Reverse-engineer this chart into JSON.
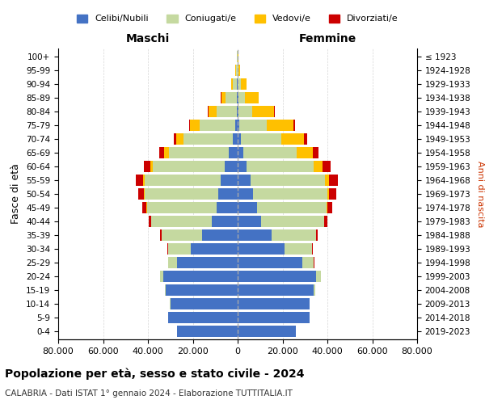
{
  "age_groups": [
    "0-4",
    "5-9",
    "10-14",
    "15-19",
    "20-24",
    "25-29",
    "30-34",
    "35-39",
    "40-44",
    "45-49",
    "50-54",
    "55-59",
    "60-64",
    "65-69",
    "70-74",
    "75-79",
    "80-84",
    "85-89",
    "90-94",
    "95-99",
    "100+"
  ],
  "birth_years": [
    "2019-2023",
    "2014-2018",
    "2009-2013",
    "2004-2008",
    "1999-2003",
    "1994-1998",
    "1989-1993",
    "1984-1988",
    "1979-1983",
    "1974-1978",
    "1969-1973",
    "1964-1968",
    "1959-1963",
    "1954-1958",
    "1949-1953",
    "1944-1948",
    "1939-1943",
    "1934-1938",
    "1929-1933",
    "1924-1928",
    "≤ 1923"
  ],
  "colors": {
    "celibi": "#4472c4",
    "coniugati": "#c5d9a0",
    "vedovi": "#ffc000",
    "divorziati": "#cc0000"
  },
  "male": {
    "celibi": [
      27000,
      31000,
      30000,
      32000,
      33000,
      27000,
      21000,
      16000,
      11500,
      9500,
      8500,
      7500,
      5800,
      3800,
      2300,
      1100,
      500,
      350,
      200,
      100,
      50
    ],
    "coniugati": [
      20,
      50,
      100,
      500,
      1500,
      4000,
      10000,
      18000,
      27000,
      31000,
      33000,
      34000,
      32000,
      27000,
      22000,
      16000,
      9000,
      5000,
      2000,
      600,
      200
    ],
    "vedovi": [
      0,
      1,
      1,
      2,
      5,
      10,
      20,
      40,
      80,
      150,
      300,
      600,
      1200,
      2000,
      3000,
      4000,
      3500,
      2000,
      800,
      300,
      100
    ],
    "divorziati": [
      1,
      2,
      5,
      10,
      30,
      80,
      200,
      500,
      900,
      1800,
      2500,
      3200,
      2800,
      2000,
      1200,
      600,
      200,
      100,
      60,
      30,
      10
    ]
  },
  "female": {
    "nubili": [
      26000,
      32000,
      32000,
      34000,
      35000,
      29000,
      21000,
      15000,
      10500,
      8500,
      7000,
      5800,
      3800,
      2400,
      1400,
      800,
      350,
      250,
      150,
      80,
      30
    ],
    "coniugate": [
      20,
      50,
      150,
      600,
      2000,
      5000,
      12000,
      20000,
      28000,
      31000,
      33000,
      33000,
      30000,
      24000,
      18000,
      12000,
      6000,
      3000,
      1200,
      400,
      150
    ],
    "vedove": [
      0,
      1,
      1,
      3,
      8,
      20,
      50,
      100,
      200,
      400,
      800,
      2000,
      4000,
      7000,
      10000,
      12000,
      10000,
      6000,
      2500,
      700,
      200
    ],
    "divorziate": [
      1,
      2,
      5,
      15,
      40,
      100,
      300,
      700,
      1200,
      2200,
      3200,
      4000,
      3500,
      2500,
      1500,
      800,
      300,
      150,
      80,
      30,
      10
    ]
  },
  "xlim": 80000,
  "title": "Popolazione per età, sesso e stato civile - 2024",
  "subtitle": "CALABRIA - Dati ISTAT 1° gennaio 2024 - Elaborazione TUTTITALIA.IT",
  "xlabel_left": "Maschi",
  "xlabel_right": "Femmine",
  "ylabel": "Fasce di età",
  "ylabel_right": "Anni di nascita",
  "legend_labels": [
    "Celibi/Nubili",
    "Coniugati/e",
    "Vedovi/e",
    "Divorziati/e"
  ],
  "background_color": "#ffffff",
  "grid_color": "#cccccc"
}
